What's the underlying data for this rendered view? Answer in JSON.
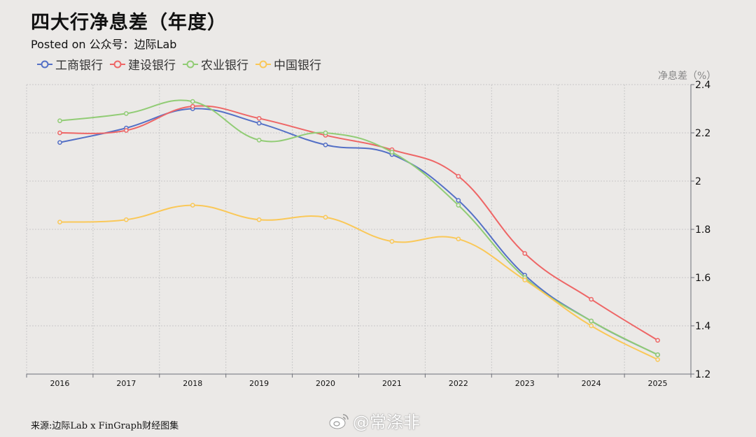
{
  "header": {
    "title": "四大行净息差（年度）",
    "subtitle": "Posted on 公众号：边际Lab"
  },
  "footer": {
    "source": "来源:边际Lab x FinGraph财经图集",
    "watermark": "@常涤非",
    "watermark_icon": "weibo-icon"
  },
  "colors": {
    "background": "#ebe9e7",
    "grid": "#c8c8c8",
    "axis": "#6e7079"
  },
  "chart_data": {
    "type": "line",
    "title": "四大行净息差（年度）",
    "subtitle": "Posted on 公众号：边际Lab",
    "xlabel": "",
    "ylabel": "净息差（%）",
    "y_axis_position": "right",
    "ylim": [
      1.2,
      2.4
    ],
    "yticks": [
      1.2,
      1.4,
      1.6,
      1.8,
      2,
      2.2,
      2.4
    ],
    "grid": true,
    "smooth": true,
    "legend_position": "top-left",
    "categories": [
      "2016",
      "2017",
      "2018",
      "2019",
      "2020",
      "2021",
      "2022",
      "2023",
      "2024",
      "2025"
    ],
    "series": [
      {
        "name": "工商银行",
        "color": "#5470c6",
        "values": [
          2.16,
          2.22,
          2.3,
          2.24,
          2.15,
          2.11,
          1.92,
          1.61,
          1.42,
          1.28
        ]
      },
      {
        "name": "建设银行",
        "color": "#ee6666",
        "values": [
          2.2,
          2.21,
          2.31,
          2.26,
          2.19,
          2.13,
          2.02,
          1.7,
          1.51,
          1.34
        ]
      },
      {
        "name": "农业银行",
        "color": "#91cc75",
        "values": [
          2.25,
          2.28,
          2.33,
          2.17,
          2.2,
          2.12,
          1.9,
          1.6,
          1.42,
          1.28
        ]
      },
      {
        "name": "中国银行",
        "color": "#fac858",
        "values": [
          1.83,
          1.84,
          1.9,
          1.84,
          1.85,
          1.75,
          1.76,
          1.59,
          1.4,
          1.26
        ]
      }
    ]
  }
}
